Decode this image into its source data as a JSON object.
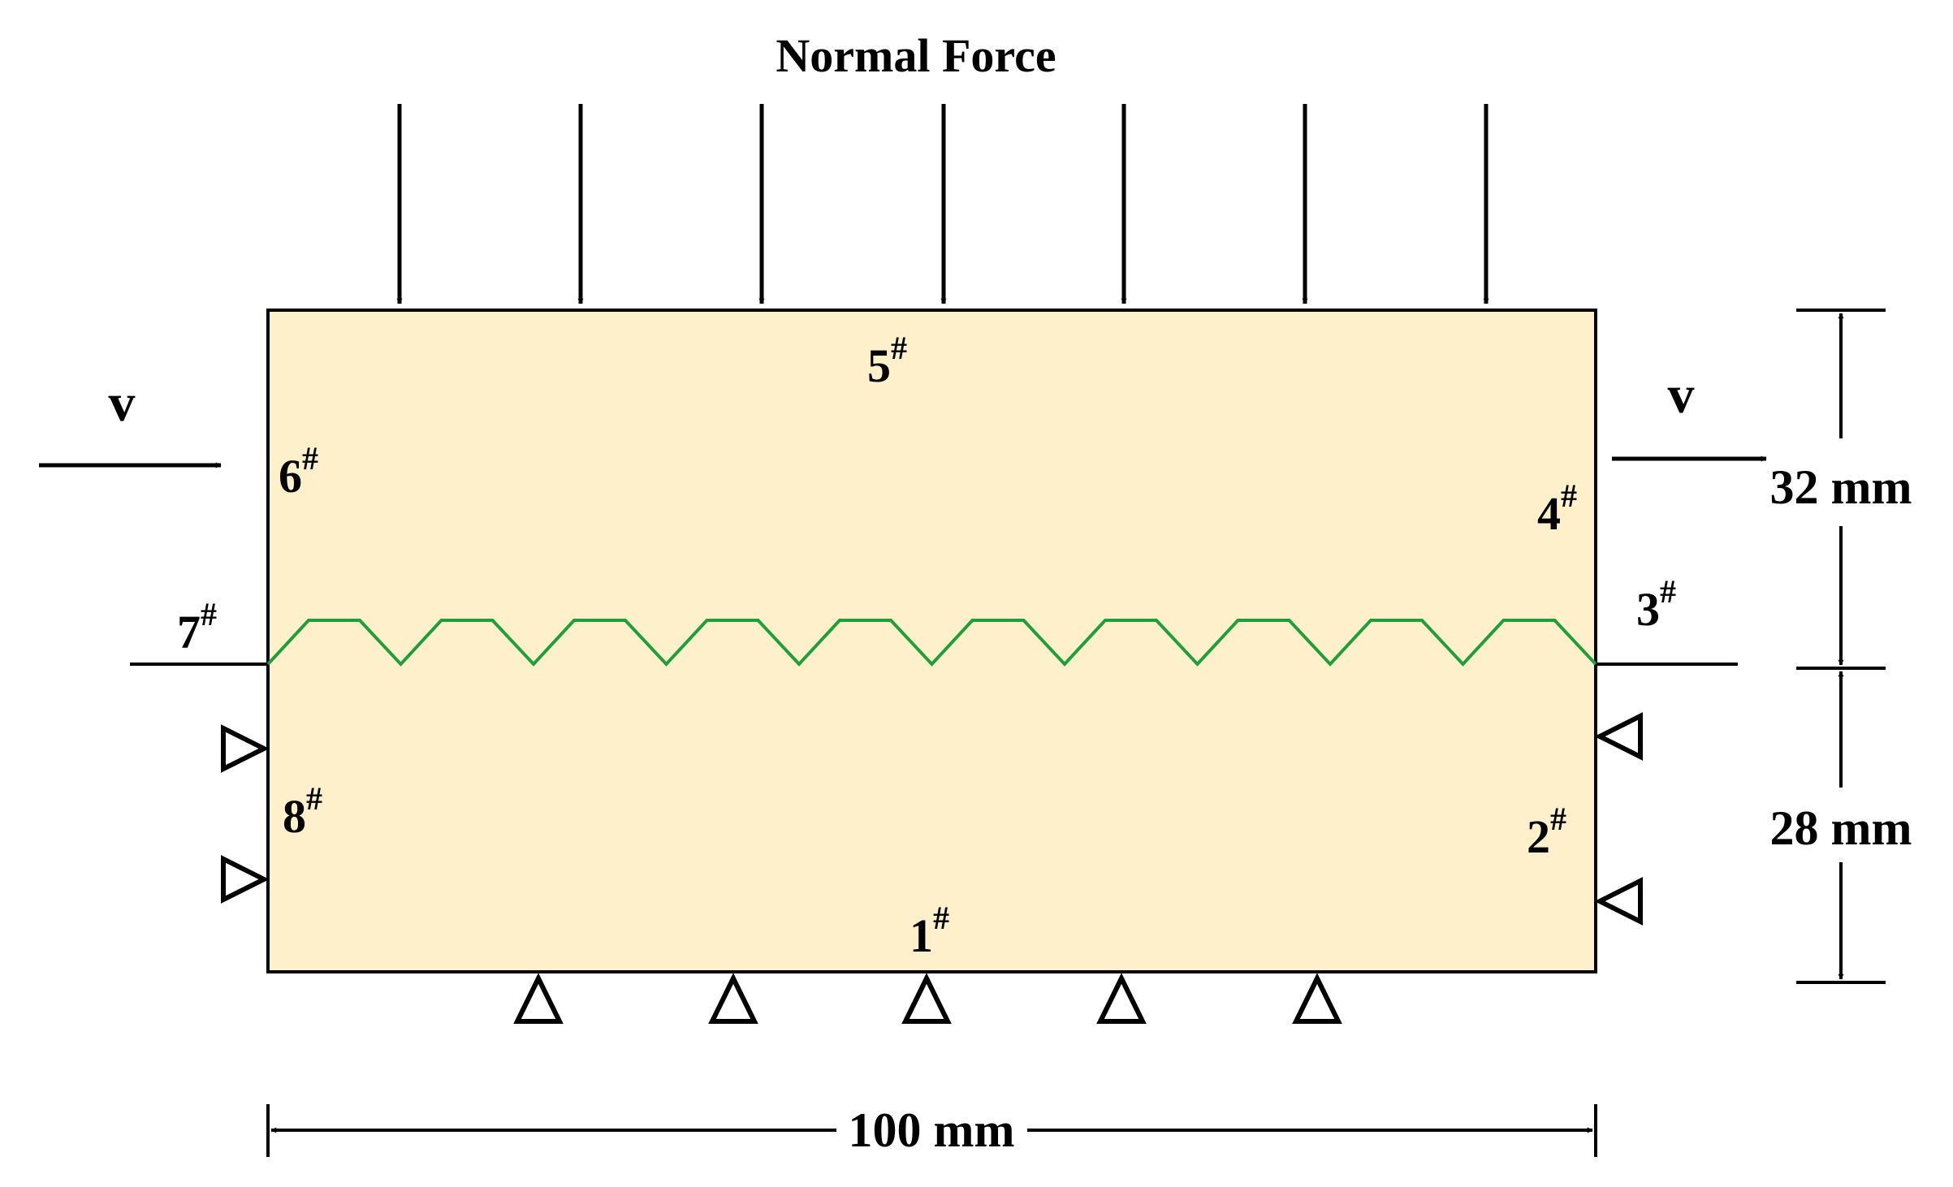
{
  "title": "Normal Force",
  "velocity_label": "v",
  "points": [
    {
      "num": "1",
      "mark": "#"
    },
    {
      "num": "2",
      "mark": "#"
    },
    {
      "num": "3",
      "mark": "#"
    },
    {
      "num": "4",
      "mark": "#"
    },
    {
      "num": "5",
      "mark": "#"
    },
    {
      "num": "6",
      "mark": "#"
    },
    {
      "num": "7",
      "mark": "#"
    },
    {
      "num": "8",
      "mark": "#"
    }
  ],
  "dimensions": {
    "upper_height": "32 mm",
    "lower_height": "28 mm",
    "width": "100 mm"
  },
  "colors": {
    "block_fill": "#fdf0cb",
    "joint_line": "#1f9e3a",
    "stroke": "#000000"
  }
}
